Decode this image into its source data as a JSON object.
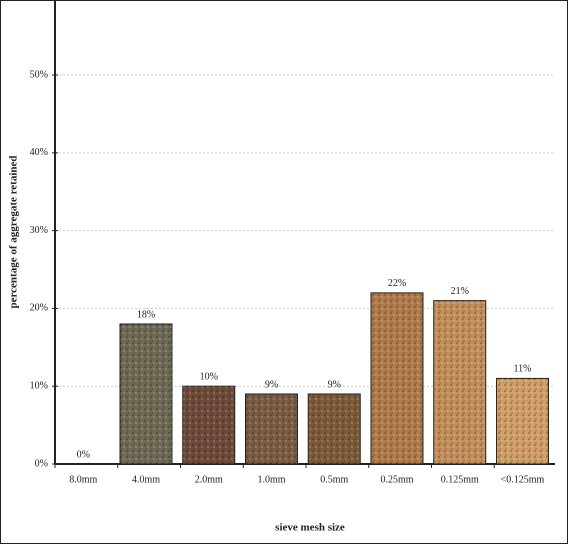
{
  "chart_data": {
    "type": "bar",
    "x_label": "sieve mesh size",
    "y_label": "percentage of aggregate retained",
    "categories": [
      "8.0mm",
      "4.0mm",
      "2.0mm",
      "1.0mm",
      "0.5mm",
      "0.25mm",
      "0.125mm",
      "<0.125mm"
    ],
    "values": [
      0,
      18,
      10,
      9,
      9,
      22,
      21,
      11
    ],
    "value_labels": [
      "0%",
      "18%",
      "10%",
      "9%",
      "9%",
      "22%",
      "21%",
      "11%"
    ],
    "colors": [
      "#8a7a60",
      "#6f6a55",
      "#6e4a3a",
      "#7a5c44",
      "#7d5a3a",
      "#b07a4a",
      "#c38e5a",
      "#cf9d66"
    ],
    "ylim": [
      0,
      59
    ],
    "yticks": [
      {
        "value": 0,
        "label": "0%"
      },
      {
        "value": 10,
        "label": "10%"
      },
      {
        "value": 20,
        "label": "20%"
      },
      {
        "value": 30,
        "label": "30%"
      },
      {
        "value": 40,
        "label": "40%"
      },
      {
        "value": 50,
        "label": "50%"
      }
    ],
    "grid": true
  }
}
